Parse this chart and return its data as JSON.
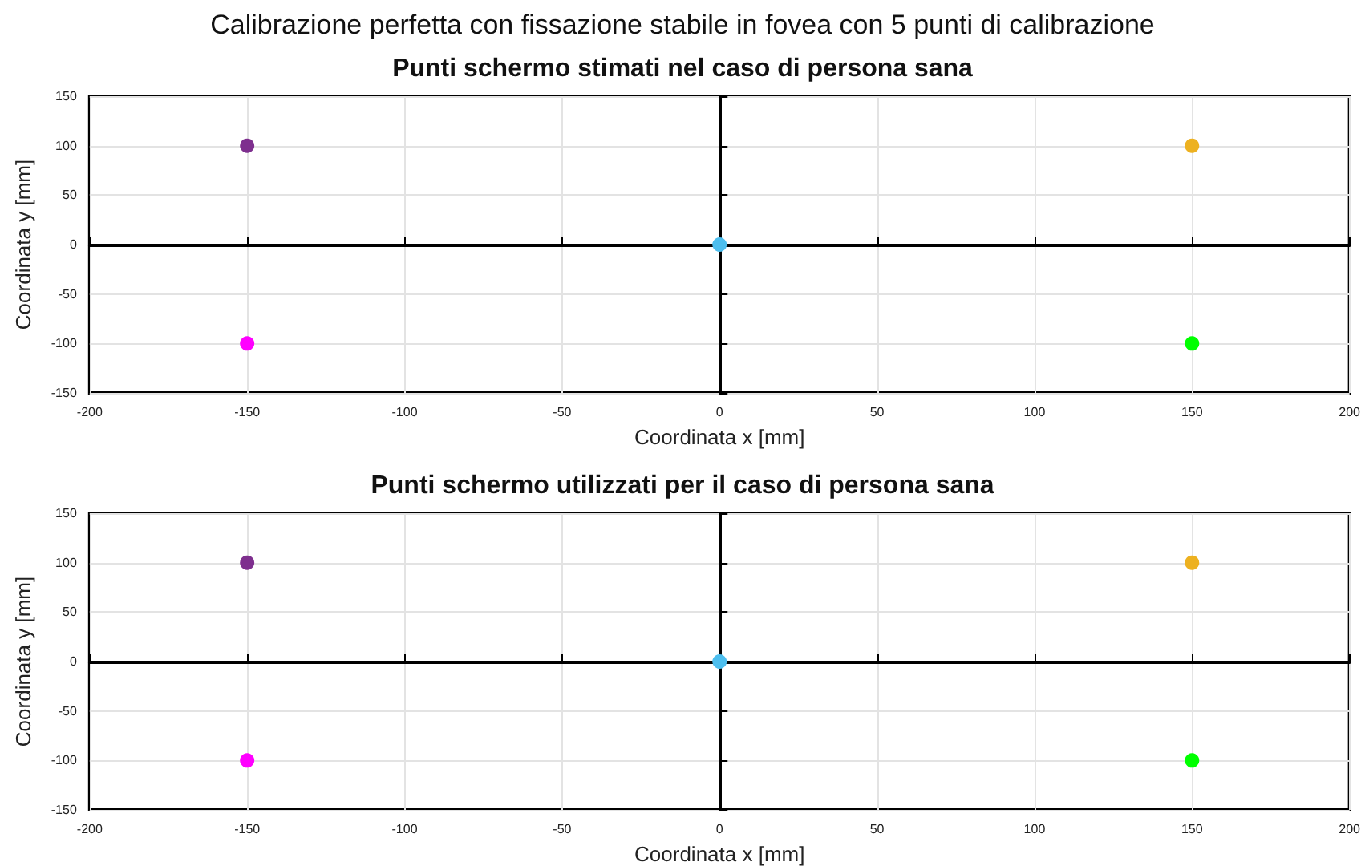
{
  "chart_data": [
    {
      "type": "scatter",
      "title": "Punti schermo stimati nel caso di persona sana",
      "annotations": [
        "Calibrazione perfetta con fissazione stabile in fovea con 5 punti di calibrazione"
      ],
      "xlabel": "Coordinata x [mm]",
      "ylabel": "Coordinata y [mm]",
      "x": [
        -150,
        150,
        0,
        -150,
        150
      ],
      "values": [
        100,
        100,
        0,
        -100,
        -100
      ],
      "colors": [
        "#7e2f8e",
        "#edb120",
        "#4dbeee",
        "#ff00ff",
        "#00ff00"
      ],
      "xlim": [
        -200,
        200
      ],
      "xticks": [
        -200,
        -150,
        -100,
        -50,
        0,
        50,
        100,
        150,
        200
      ],
      "ylim": [
        -150,
        150
      ],
      "yticks": [
        -150,
        -100,
        -50,
        0,
        50,
        100,
        150
      ],
      "grid": true,
      "marker": "circle"
    },
    {
      "type": "scatter",
      "title": "Punti schermo utilizzati per il caso di persona sana",
      "xlabel": "Coordinata x [mm]",
      "ylabel": "Coordinata y [mm]",
      "x": [
        -150,
        150,
        0,
        -150,
        150
      ],
      "values": [
        100,
        100,
        0,
        -100,
        -100
      ],
      "colors": [
        "#7e2f8e",
        "#edb120",
        "#4dbeee",
        "#ff00ff",
        "#00ff00"
      ],
      "xlim": [
        -200,
        200
      ],
      "xticks": [
        -200,
        -150,
        -100,
        -50,
        0,
        50,
        100,
        150,
        200
      ],
      "ylim": [
        -150,
        150
      ],
      "yticks": [
        -150,
        -100,
        -50,
        0,
        50,
        100,
        150
      ],
      "grid": true,
      "marker": "circle"
    }
  ]
}
